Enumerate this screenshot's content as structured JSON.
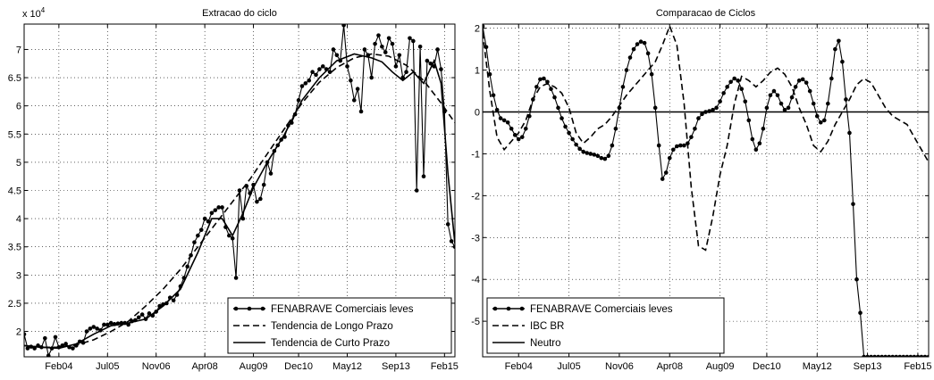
{
  "chart_data": [
    {
      "type": "line",
      "title": "Extracao do ciclo",
      "xlabel": "",
      "ylabel": "",
      "y_exponent_label": "x 10",
      "y_exponent_power": "4",
      "xlim": [
        2003.0,
        2015.4
      ],
      "ylim": [
        1.55,
        7.45
      ],
      "grid": "dotted",
      "x_ticks": [
        {
          "x": 2004.0,
          "label": "Feb04"
        },
        {
          "x": 2005.4,
          "label": "Jul05"
        },
        {
          "x": 2006.8,
          "label": "Nov06"
        },
        {
          "x": 2008.2,
          "label": "Apr08"
        },
        {
          "x": 2009.6,
          "label": "Aug09"
        },
        {
          "x": 2010.9,
          "label": "Dec10"
        },
        {
          "x": 2012.3,
          "label": "May12"
        },
        {
          "x": 2013.7,
          "label": "Sep13"
        },
        {
          "x": 2015.1,
          "label": "Feb15"
        }
      ],
      "y_ticks": [
        {
          "y": 2,
          "label": "2"
        },
        {
          "y": 2.5,
          "label": "2.5"
        },
        {
          "y": 3,
          "label": "3"
        },
        {
          "y": 3.5,
          "label": "3.5"
        },
        {
          "y": 4,
          "label": "4"
        },
        {
          "y": 4.5,
          "label": "4.5"
        },
        {
          "y": 5,
          "label": "5"
        },
        {
          "y": 5.5,
          "label": "5.5"
        },
        {
          "y": 6,
          "label": "6"
        },
        {
          "y": 6.5,
          "label": "6.5"
        },
        {
          "y": 7,
          "label": "7"
        }
      ],
      "legend_position": "bottom-right",
      "series": [
        {
          "name": "FENABRAVE  Comerciais leves",
          "style": "solid-dots",
          "x": [
            2003.0,
            2003.1,
            2003.2,
            2003.3,
            2003.4,
            2003.5,
            2003.6,
            2003.7,
            2003.8,
            2003.9,
            2004.0,
            2004.1,
            2004.2,
            2004.3,
            2004.4,
            2004.5,
            2004.6,
            2004.7,
            2004.8,
            2004.9,
            2005.0,
            2005.1,
            2005.2,
            2005.3,
            2005.4,
            2005.5,
            2005.6,
            2005.7,
            2005.8,
            2005.9,
            2006.0,
            2006.1,
            2006.2,
            2006.3,
            2006.4,
            2006.5,
            2006.6,
            2006.7,
            2006.8,
            2006.9,
            2007.0,
            2007.1,
            2007.2,
            2007.3,
            2007.4,
            2007.5,
            2007.6,
            2007.7,
            2007.8,
            2007.9,
            2008.0,
            2008.1,
            2008.2,
            2008.3,
            2008.4,
            2008.5,
            2008.6,
            2008.7,
            2008.8,
            2008.9,
            2009.0,
            2009.1,
            2009.2,
            2009.3,
            2009.4,
            2009.5,
            2009.6,
            2009.7,
            2009.8,
            2009.9,
            2010.0,
            2010.1,
            2010.2,
            2010.3,
            2010.4,
            2010.5,
            2010.6,
            2010.7,
            2010.8,
            2010.9,
            2011.0,
            2011.1,
            2011.2,
            2011.3,
            2011.4,
            2011.5,
            2011.6,
            2011.7,
            2011.8,
            2011.9,
            2012.0,
            2012.1,
            2012.2,
            2012.3,
            2012.4,
            2012.5,
            2012.6,
            2012.7,
            2012.8,
            2012.9,
            2013.0,
            2013.1,
            2013.2,
            2013.3,
            2013.4,
            2013.5,
            2013.6,
            2013.7,
            2013.8,
            2013.9,
            2014.0,
            2014.1,
            2014.2,
            2014.3,
            2014.4,
            2014.5,
            2014.6,
            2014.7,
            2014.8,
            2014.9,
            2015.0,
            2015.1,
            2015.2,
            2015.3,
            2015.4
          ],
          "y": [
            1.95,
            1.7,
            1.73,
            1.7,
            1.75,
            1.72,
            1.88,
            1.57,
            1.7,
            1.9,
            1.72,
            1.75,
            1.78,
            1.72,
            1.7,
            1.75,
            1.82,
            1.8,
            2.0,
            2.05,
            2.08,
            2.05,
            2.02,
            2.12,
            2.12,
            2.15,
            2.13,
            2.14,
            2.15,
            2.15,
            2.12,
            2.18,
            2.2,
            2.25,
            2.3,
            2.22,
            2.32,
            2.28,
            2.35,
            2.45,
            2.48,
            2.5,
            2.6,
            2.55,
            2.65,
            2.8,
            2.95,
            3.15,
            3.35,
            3.58,
            3.7,
            3.8,
            4.0,
            3.95,
            4.1,
            4.15,
            4.2,
            4.2,
            3.85,
            3.7,
            3.65,
            2.95,
            4.5,
            4.0,
            4.58,
            4.45,
            4.6,
            4.3,
            4.35,
            4.6,
            5.0,
            4.8,
            5.2,
            5.3,
            5.4,
            5.45,
            5.65,
            5.7,
            5.85,
            6.1,
            6.35,
            6.4,
            6.45,
            6.6,
            6.55,
            6.65,
            6.7,
            6.65,
            6.6,
            7.0,
            6.9,
            6.8,
            7.43,
            6.7,
            6.45,
            6.1,
            6.3,
            5.9,
            7.0,
            6.9,
            6.5,
            7.1,
            7.25,
            7.05,
            6.95,
            7.2,
            7.1,
            6.7,
            6.9,
            6.5,
            6.6,
            7.2,
            7.15,
            4.5,
            7.05,
            4.75,
            6.8,
            6.75,
            6.7,
            7.0,
            6.65,
            5.9,
            3.9,
            3.6,
            3.5
          ]
        },
        {
          "name": "Tendencia de Longo Prazo",
          "style": "dashed",
          "x": [
            2003.0,
            2003.5,
            2004.0,
            2004.5,
            2005.0,
            2005.5,
            2006.0,
            2006.5,
            2007.0,
            2007.5,
            2008.0,
            2008.5,
            2009.0,
            2009.5,
            2010.0,
            2010.5,
            2011.0,
            2011.5,
            2012.0,
            2012.5,
            2013.0,
            2013.5,
            2014.0,
            2014.5,
            2015.0,
            2015.4
          ],
          "y": [
            1.75,
            1.72,
            1.72,
            1.76,
            1.85,
            2.0,
            2.18,
            2.45,
            2.75,
            3.1,
            3.5,
            3.9,
            4.3,
            4.7,
            5.15,
            5.6,
            6.05,
            6.42,
            6.68,
            6.85,
            6.92,
            6.88,
            6.72,
            6.45,
            6.05,
            5.7
          ]
        },
        {
          "name": "Tendencia de Curto Prazo",
          "style": "solid",
          "x": [
            2003.0,
            2003.5,
            2004.0,
            2004.5,
            2005.0,
            2005.5,
            2006.0,
            2006.5,
            2007.0,
            2007.5,
            2008.0,
            2008.4,
            2008.7,
            2009.0,
            2009.3,
            2009.6,
            2010.0,
            2010.5,
            2011.0,
            2011.5,
            2012.0,
            2012.5,
            2013.0,
            2013.3,
            2013.6,
            2013.9,
            2014.2,
            2014.5,
            2014.8,
            2015.0,
            2015.2,
            2015.4
          ],
          "y": [
            1.75,
            1.72,
            1.7,
            1.78,
            1.95,
            2.1,
            2.15,
            2.22,
            2.45,
            2.75,
            3.4,
            4.0,
            4.0,
            3.7,
            4.1,
            4.55,
            5.0,
            5.5,
            6.1,
            6.5,
            6.8,
            6.92,
            6.85,
            6.78,
            6.6,
            6.45,
            6.6,
            6.4,
            6.8,
            6.4,
            4.8,
            3.55
          ]
        }
      ]
    },
    {
      "type": "line",
      "title": "Comparacao de Ciclos",
      "xlabel": "",
      "ylabel": "",
      "xlim": [
        2003.0,
        2015.4
      ],
      "ylim": [
        -5.85,
        2.1
      ],
      "grid": "dotted",
      "x_ticks": [
        {
          "x": 2004.0,
          "label": "Feb04"
        },
        {
          "x": 2005.4,
          "label": "Jul05"
        },
        {
          "x": 2006.8,
          "label": "Nov06"
        },
        {
          "x": 2008.2,
          "label": "Apr08"
        },
        {
          "x": 2009.6,
          "label": "Aug09"
        },
        {
          "x": 2010.9,
          "label": "Dec10"
        },
        {
          "x": 2012.3,
          "label": "May12"
        },
        {
          "x": 2013.7,
          "label": "Sep13"
        },
        {
          "x": 2015.1,
          "label": "Feb15"
        }
      ],
      "y_ticks": [
        {
          "y": -5,
          "label": "-5"
        },
        {
          "y": -4,
          "label": "-4"
        },
        {
          "y": -3,
          "label": "-3"
        },
        {
          "y": -2,
          "label": "-2"
        },
        {
          "y": -1,
          "label": "-1"
        },
        {
          "y": 0,
          "label": "0"
        },
        {
          "y": 1,
          "label": "1"
        },
        {
          "y": 2,
          "label": "2"
        }
      ],
      "legend_position": "bottom-left",
      "series": [
        {
          "name": "FENABRAVE  Comerciais leves",
          "style": "solid-dots",
          "x": [
            2003.0,
            2003.1,
            2003.2,
            2003.3,
            2003.4,
            2003.5,
            2003.6,
            2003.7,
            2003.8,
            2003.9,
            2004.0,
            2004.1,
            2004.2,
            2004.3,
            2004.4,
            2004.5,
            2004.6,
            2004.7,
            2004.8,
            2004.9,
            2005.0,
            2005.1,
            2005.2,
            2005.3,
            2005.4,
            2005.5,
            2005.6,
            2005.7,
            2005.8,
            2005.9,
            2006.0,
            2006.1,
            2006.2,
            2006.3,
            2006.4,
            2006.5,
            2006.6,
            2006.7,
            2006.8,
            2006.9,
            2007.0,
            2007.1,
            2007.2,
            2007.3,
            2007.4,
            2007.5,
            2007.6,
            2007.7,
            2007.8,
            2007.9,
            2008.0,
            2008.1,
            2008.2,
            2008.3,
            2008.4,
            2008.5,
            2008.6,
            2008.7,
            2008.8,
            2008.9,
            2009.0,
            2009.1,
            2009.2,
            2009.3,
            2009.4,
            2009.5,
            2009.6,
            2009.7,
            2009.8,
            2009.9,
            2010.0,
            2010.1,
            2010.2,
            2010.3,
            2010.4,
            2010.5,
            2010.6,
            2010.7,
            2010.8,
            2010.9,
            2011.0,
            2011.1,
            2011.2,
            2011.3,
            2011.4,
            2011.5,
            2011.6,
            2011.7,
            2011.8,
            2011.9,
            2012.0,
            2012.1,
            2012.2,
            2012.3,
            2012.4,
            2012.5,
            2012.6,
            2012.7,
            2012.8,
            2012.9,
            2013.0,
            2013.1,
            2013.2,
            2013.3,
            2013.4,
            2013.5,
            2013.6,
            2013.7,
            2013.8,
            2013.9,
            2014.0,
            2014.1,
            2014.2,
            2014.3,
            2014.4,
            2014.5,
            2014.6,
            2014.7,
            2014.8,
            2014.9,
            2015.0,
            2015.1,
            2015.2,
            2015.3,
            2015.4
          ],
          "y": [
            2.05,
            1.55,
            0.9,
            0.4,
            0.05,
            -0.15,
            -0.2,
            -0.25,
            -0.4,
            -0.55,
            -0.65,
            -0.6,
            -0.4,
            -0.1,
            0.3,
            0.6,
            0.78,
            0.8,
            0.72,
            0.55,
            0.35,
            0.1,
            -0.15,
            -0.35,
            -0.5,
            -0.65,
            -0.78,
            -0.88,
            -0.95,
            -0.98,
            -1.0,
            -1.02,
            -1.05,
            -1.1,
            -1.12,
            -1.05,
            -0.8,
            -0.4,
            0.1,
            0.6,
            1.0,
            1.3,
            1.5,
            1.62,
            1.68,
            1.65,
            1.4,
            0.9,
            0.1,
            -0.8,
            -1.6,
            -1.45,
            -1.1,
            -0.9,
            -0.82,
            -0.8,
            -0.8,
            -0.75,
            -0.6,
            -0.4,
            -0.15,
            -0.05,
            0.0,
            0.02,
            0.05,
            0.1,
            0.25,
            0.45,
            0.6,
            0.72,
            0.8,
            0.75,
            0.55,
            0.25,
            -0.2,
            -0.65,
            -0.9,
            -0.75,
            -0.4,
            0.1,
            0.4,
            0.5,
            0.4,
            0.2,
            0.05,
            0.1,
            0.35,
            0.6,
            0.75,
            0.78,
            0.7,
            0.5,
            0.2,
            -0.1,
            -0.25,
            -0.2,
            0.2,
            0.8,
            1.5,
            1.7,
            1.2,
            0.3,
            -0.5,
            -2.2,
            -4.0,
            -4.8,
            -5.85,
            -5.85,
            -5.85,
            -5.85,
            -5.85,
            -5.85,
            -5.85,
            -5.85,
            -5.85,
            -5.85,
            -5.85,
            -5.85,
            -5.85,
            -5.85,
            -5.85,
            -5.85,
            -5.85,
            -5.85,
            -5.85
          ]
        },
        {
          "name": "IBC BR",
          "style": "dashed",
          "x": [
            2003.0,
            2003.2,
            2003.4,
            2003.6,
            2003.8,
            2004.0,
            2004.2,
            2004.4,
            2004.6,
            2004.8,
            2005.0,
            2005.2,
            2005.4,
            2005.6,
            2005.8,
            2006.0,
            2006.2,
            2006.4,
            2006.6,
            2006.8,
            2007.0,
            2007.2,
            2007.4,
            2007.6,
            2007.8,
            2008.0,
            2008.2,
            2008.4,
            2008.6,
            2008.8,
            2009.0,
            2009.2,
            2009.4,
            2009.6,
            2009.8,
            2010.0,
            2010.2,
            2010.4,
            2010.6,
            2010.8,
            2011.0,
            2011.2,
            2011.4,
            2011.6,
            2011.8,
            2012.0,
            2012.2,
            2012.4,
            2012.6,
            2012.8,
            2013.0,
            2013.2,
            2013.4,
            2013.6,
            2013.8,
            2014.0,
            2014.2,
            2014.4,
            2014.6,
            2014.8,
            2015.0,
            2015.2,
            2015.4
          ],
          "y": [
            1.9,
            0.5,
            -0.6,
            -0.9,
            -0.7,
            -0.5,
            -0.2,
            0.3,
            0.6,
            0.68,
            0.6,
            0.45,
            0.1,
            -0.5,
            -0.75,
            -0.6,
            -0.4,
            -0.3,
            -0.1,
            0.15,
            0.4,
            0.6,
            0.8,
            1.0,
            1.2,
            1.6,
            2.05,
            1.6,
            0.2,
            -1.8,
            -3.2,
            -3.3,
            -2.5,
            -1.5,
            -0.8,
            0.2,
            0.85,
            0.75,
            0.6,
            0.75,
            0.95,
            1.05,
            0.9,
            0.6,
            0.1,
            -0.3,
            -0.8,
            -0.95,
            -0.7,
            -0.3,
            0.0,
            0.3,
            0.65,
            0.8,
            0.7,
            0.4,
            0.1,
            -0.1,
            -0.2,
            -0.3,
            -0.6,
            -0.9,
            -1.2
          ]
        },
        {
          "name": "Neutro",
          "style": "solid",
          "x": [
            2003.0,
            2015.4
          ],
          "y": [
            0,
            0
          ]
        }
      ]
    }
  ]
}
